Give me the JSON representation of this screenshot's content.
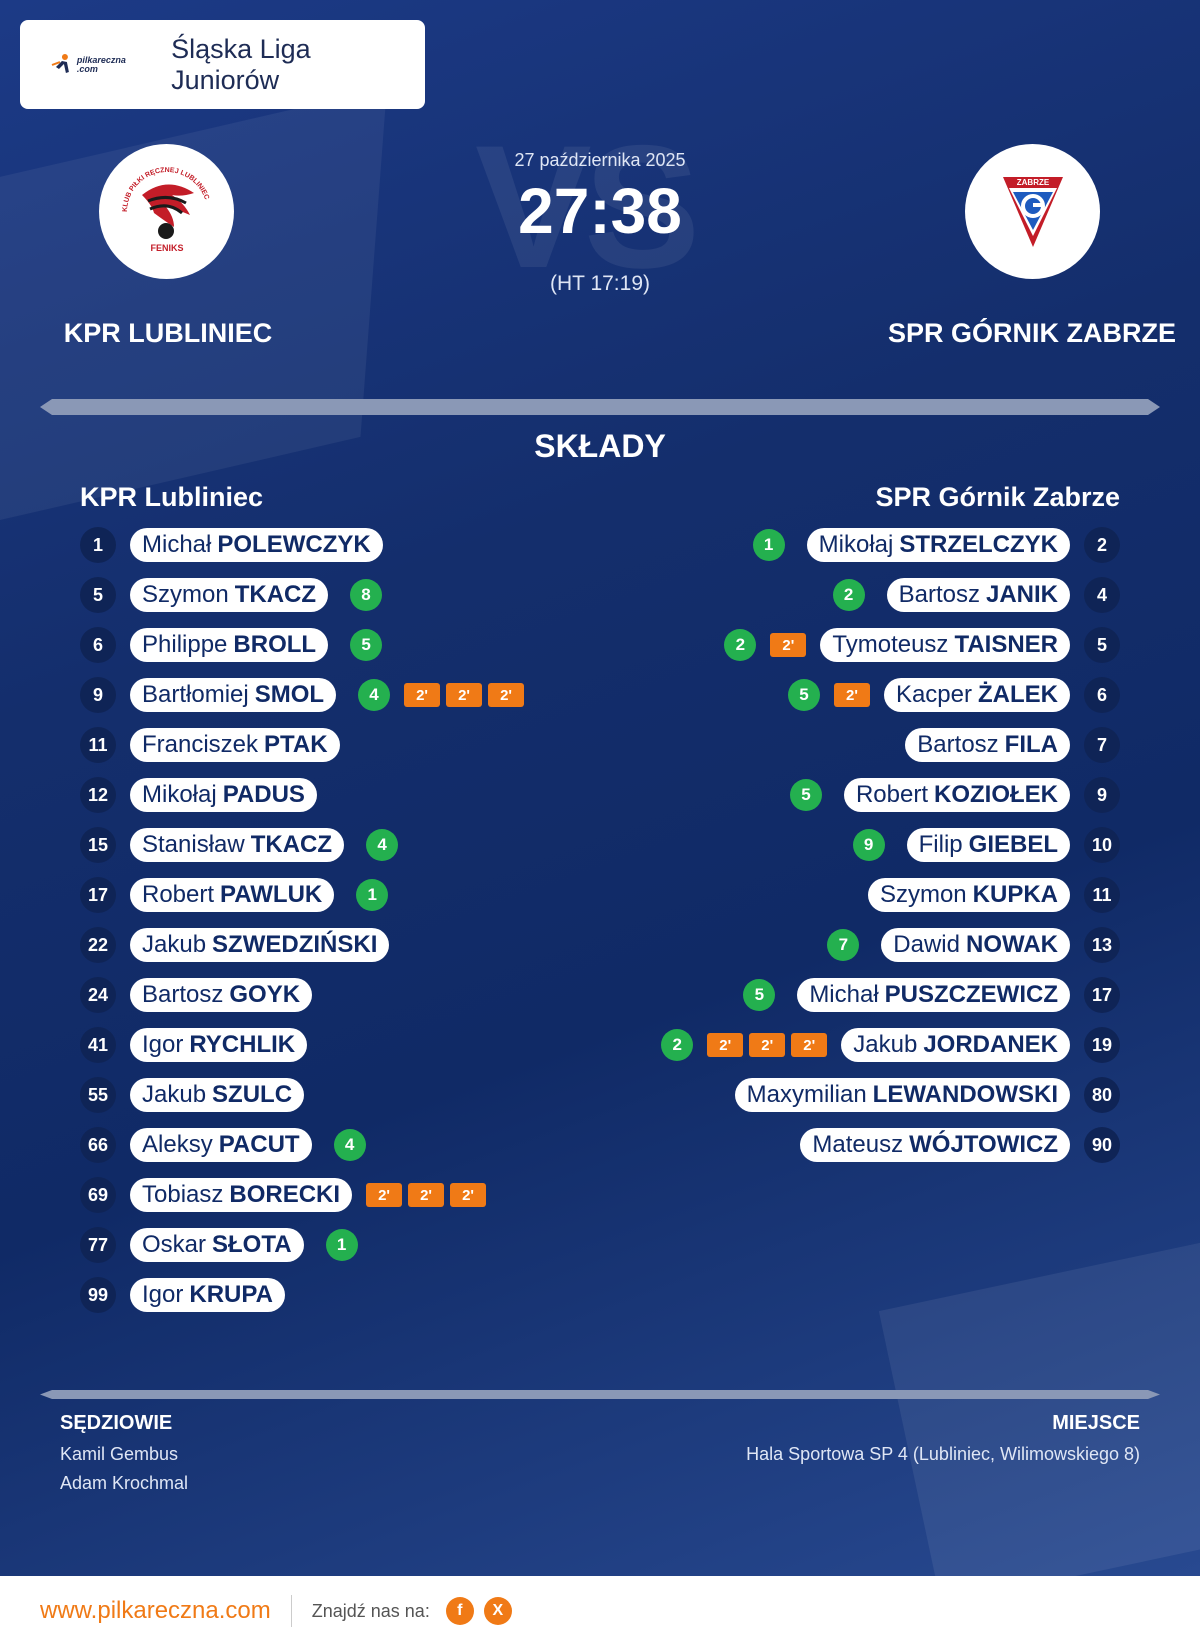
{
  "league": "Śląska Liga Juniorów",
  "logo_text": "pilkareczna .com",
  "match": {
    "date": "27 października 2025",
    "score": "27:38",
    "halftime": "(HT 17:19)",
    "vs_watermark": "VS"
  },
  "home": {
    "name_upper": "KPR LUBLINIEC",
    "name": "KPR Lubliniec",
    "crest_text": "FENIKS",
    "crest_ring_text": "KLUB PIŁKI RĘCZNEJ LUBLINIEC",
    "players": [
      {
        "num": "1",
        "first": "Michał",
        "last": "POLEWCZYK",
        "goals": null,
        "suspensions": []
      },
      {
        "num": "5",
        "first": "Szymon",
        "last": "TKACZ",
        "goals": "8",
        "suspensions": []
      },
      {
        "num": "6",
        "first": "Philippe",
        "last": "BROLL",
        "goals": "5",
        "suspensions": []
      },
      {
        "num": "9",
        "first": "Bartłomiej",
        "last": "SMOL",
        "goals": "4",
        "suspensions": [
          "2'",
          "2'",
          "2'"
        ]
      },
      {
        "num": "11",
        "first": "Franciszek",
        "last": "PTAK",
        "goals": null,
        "suspensions": []
      },
      {
        "num": "12",
        "first": "Mikołaj",
        "last": "PADUS",
        "goals": null,
        "suspensions": []
      },
      {
        "num": "15",
        "first": "Stanisław",
        "last": "TKACZ",
        "goals": "4",
        "suspensions": []
      },
      {
        "num": "17",
        "first": "Robert",
        "last": "PAWLUK",
        "goals": "1",
        "suspensions": []
      },
      {
        "num": "22",
        "first": "Jakub",
        "last": "SZWEDZIŃSKI",
        "goals": null,
        "suspensions": []
      },
      {
        "num": "24",
        "first": "Bartosz",
        "last": "GOYK",
        "goals": null,
        "suspensions": []
      },
      {
        "num": "41",
        "first": "Igor",
        "last": "RYCHLIK",
        "goals": null,
        "suspensions": []
      },
      {
        "num": "55",
        "first": "Jakub",
        "last": "SZULC",
        "goals": null,
        "suspensions": []
      },
      {
        "num": "66",
        "first": "Aleksy",
        "last": "PACUT",
        "goals": "4",
        "suspensions": []
      },
      {
        "num": "69",
        "first": "Tobiasz",
        "last": "BORECKI",
        "goals": null,
        "suspensions": [
          "2'",
          "2'",
          "2'"
        ]
      },
      {
        "num": "77",
        "first": "Oskar",
        "last": "SŁOTA",
        "goals": "1",
        "suspensions": []
      },
      {
        "num": "99",
        "first": "Igor",
        "last": "KRUPA",
        "goals": null,
        "suspensions": []
      }
    ]
  },
  "away": {
    "name_upper": "SPR GÓRNIK ZABRZE",
    "name": "SPR Górnik Zabrze",
    "crest_text": "ZABRZE",
    "players": [
      {
        "num": "2",
        "first": "Mikołaj",
        "last": "STRZELCZYK",
        "goals": "1",
        "suspensions": []
      },
      {
        "num": "4",
        "first": "Bartosz",
        "last": "JANIK",
        "goals": "2",
        "suspensions": []
      },
      {
        "num": "5",
        "first": "Tymoteusz",
        "last": "TAISNER",
        "goals": "2",
        "suspensions": [
          "2'"
        ]
      },
      {
        "num": "6",
        "first": "Kacper",
        "last": "ŻALEK",
        "goals": "5",
        "suspensions": [
          "2'"
        ]
      },
      {
        "num": "7",
        "first": "Bartosz",
        "last": "FILA",
        "goals": null,
        "suspensions": []
      },
      {
        "num": "9",
        "first": "Robert",
        "last": "KOZIOŁEK",
        "goals": "5",
        "suspensions": []
      },
      {
        "num": "10",
        "first": "Filip",
        "last": "GIEBEL",
        "goals": "9",
        "suspensions": []
      },
      {
        "num": "11",
        "first": "Szymon",
        "last": "KUPKA",
        "goals": null,
        "suspensions": []
      },
      {
        "num": "13",
        "first": "Dawid",
        "last": "NOWAK",
        "goals": "7",
        "suspensions": []
      },
      {
        "num": "17",
        "first": "Michał",
        "last": "PUSZCZEWICZ",
        "goals": "5",
        "suspensions": []
      },
      {
        "num": "19",
        "first": "Jakub",
        "last": "JORDANEK",
        "goals": "2",
        "suspensions": [
          "2'",
          "2'",
          "2'"
        ]
      },
      {
        "num": "80",
        "first": "Maxymilian",
        "last": "LEWANDOWSKI",
        "goals": null,
        "suspensions": []
      },
      {
        "num": "90",
        "first": "Mateusz",
        "last": "WÓJTOWICZ",
        "goals": null,
        "suspensions": []
      }
    ]
  },
  "section_title": "SKŁADY",
  "referees": {
    "title": "SĘDZIOWIE",
    "names": [
      "Kamil Gembus",
      "Adam Krochmal"
    ]
  },
  "venue": {
    "title": "MIEJSCE",
    "value": "Hala Sportowa SP 4 (Lubliniec, Wilimowskiego 8)"
  },
  "footer": {
    "url": "www.pilkareczna.com",
    "find_us": "Znajdź nas na:",
    "social": [
      {
        "icon": "facebook-icon",
        "label": "f"
      },
      {
        "icon": "x-icon",
        "label": "X"
      }
    ]
  },
  "colors": {
    "accent": "#f07a16",
    "goal": "#24b04f",
    "navy": "#102a66"
  }
}
